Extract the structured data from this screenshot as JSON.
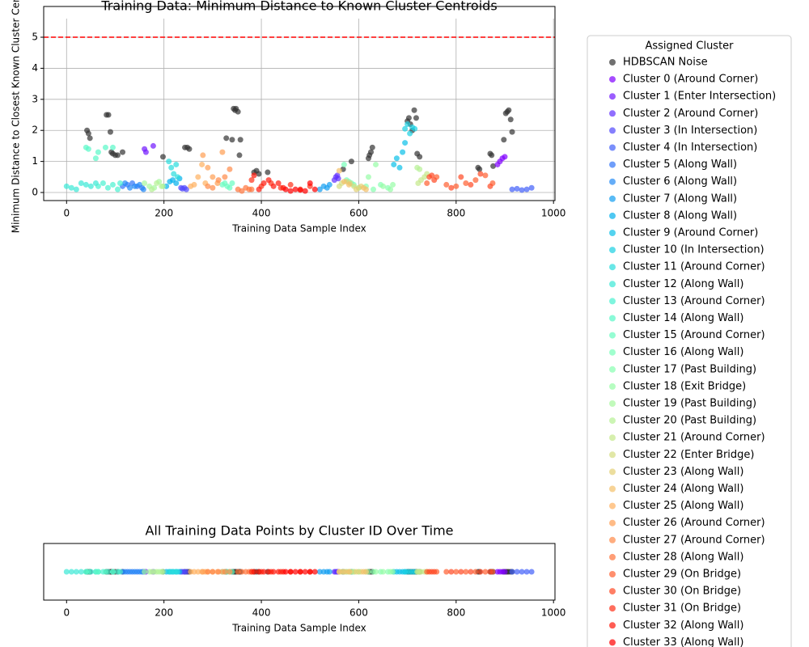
{
  "chart_data": [
    {
      "type": "scatter",
      "title": "Training Data: Minimum Distance to Known Cluster Centroids",
      "xlabel": "Training Data Sample Index",
      "ylabel": "Minimum Distance to Closest Known Cluster Centroid",
      "xlim": [
        -47,
        1003
      ],
      "ylim": [
        -0.26,
        5.99
      ],
      "xticks": [
        0,
        200,
        400,
        600,
        800,
        1000
      ],
      "yticks": [
        0,
        1,
        2,
        3,
        4,
        5
      ],
      "grid": true,
      "threshold": 5,
      "threshold_color": "#ff0000",
      "legend_title": "Assigned Cluster",
      "legend_position": "outside-right",
      "series": [
        {
          "name": "HDBSCAN Noise",
          "color": "#333333",
          "x": [
            42,
            45,
            48,
            82,
            86,
            90,
            92,
            95,
            100,
            105,
            115,
            198,
            243,
            248,
            252,
            328,
            340,
            343,
            346,
            348,
            352,
            355,
            357,
            385,
            390,
            395,
            413,
            568,
            585,
            620,
            622,
            625,
            628,
            700,
            703,
            706,
            710,
            714,
            718,
            720,
            725,
            845,
            848,
            870,
            873,
            876,
            898,
            902,
            905,
            908,
            912,
            915
          ],
          "values": [
            2.0,
            1.9,
            1.75,
            2.5,
            2.5,
            1.95,
            1.3,
            1.25,
            1.2,
            1.2,
            1.3,
            1.15,
            1.45,
            1.45,
            1.4,
            1.75,
            1.7,
            2.7,
            2.65,
            2.7,
            2.6,
            1.2,
            1.7,
            0.65,
            0.7,
            0.6,
            0.65,
            0.75,
            1.0,
            1.1,
            1.2,
            1.3,
            1.45,
            2.3,
            2.4,
            2.2,
            2.0,
            2.65,
            2.4,
            1.25,
            1.15,
            0.8,
            0.75,
            1.25,
            1.2,
            0.85,
            1.7,
            2.55,
            2.6,
            2.65,
            2.35,
            1.95
          ]
        },
        {
          "name": "Cluster 0 (Around Corner)",
          "color": "#8000ff",
          "x": [
            885,
            890,
            895,
            900
          ],
          "values": [
            0.9,
            1.0,
            1.1,
            1.15
          ]
        },
        {
          "name": "Cluster 1 (Enter Intersection)",
          "color": "#7018fe",
          "x": [
            160,
            163,
            178
          ],
          "values": [
            1.4,
            1.3,
            1.5
          ]
        },
        {
          "name": "Cluster 2 (Around Corner)",
          "color": "#6130fe",
          "x": [
            550,
            553,
            556,
            558
          ],
          "values": [
            0.4,
            0.5,
            0.55,
            0.45
          ]
        },
        {
          "name": "Cluster 3 (In Intersection)",
          "color": "#5148fc",
          "x": [
            235,
            238,
            242,
            246
          ],
          "values": [
            0.15,
            0.12,
            0.15,
            0.1
          ]
        },
        {
          "name": "Cluster 4 (In Intersection)",
          "color": "#425ffa",
          "x": [
            915,
            925,
            935,
            945,
            955
          ],
          "values": [
            0.1,
            0.12,
            0.08,
            0.1,
            0.15
          ]
        },
        {
          "name": "Cluster 5 (Along Wall)",
          "color": "#3275f8",
          "x": [
            115,
            125,
            135,
            145,
            155
          ],
          "values": [
            0.2,
            0.25,
            0.3,
            0.2,
            0.15
          ]
        },
        {
          "name": "Cluster 6 (Along Wall)",
          "color": "#238af5",
          "x": [
            120,
            130,
            140,
            150,
            158
          ],
          "values": [
            0.3,
            0.15,
            0.2,
            0.25,
            0.1
          ]
        },
        {
          "name": "Cluster 7 (Along Wall)",
          "color": "#139ef1",
          "x": [
            520,
            528,
            535,
            540
          ],
          "values": [
            0.1,
            0.2,
            0.15,
            0.25
          ]
        },
        {
          "name": "Cluster 8 (Along Wall)",
          "color": "#04b0ed",
          "x": [
            205,
            212,
            218,
            225,
            232
          ],
          "values": [
            0.2,
            0.35,
            0.4,
            0.3,
            0.45
          ]
        },
        {
          "name": "Cluster 9 (Around Corner)",
          "color": "#0cc1e8",
          "x": [
            672,
            678,
            684,
            690,
            695
          ],
          "values": [
            0.9,
            1.1,
            0.8,
            1.3,
            1.6
          ]
        },
        {
          "name": "Cluster 10 (In Intersection)",
          "color": "#1bd0e3",
          "x": [
            695,
            700,
            705,
            710,
            715
          ],
          "values": [
            2.05,
            2.2,
            1.9,
            2.1,
            2.05
          ]
        },
        {
          "name": "Cluster 11 (Around Corner)",
          "color": "#2adddd",
          "x": [
            210,
            215,
            220,
            225,
            228
          ],
          "values": [
            1.0,
            0.8,
            0.6,
            0.9,
            0.5
          ]
        },
        {
          "name": "Cluster 12 (Along Wall)",
          "color": "#3ae8d6",
          "x": [
            0,
            10,
            20,
            30,
            40,
            50,
            60
          ],
          "values": [
            0.2,
            0.15,
            0.1,
            0.3,
            0.25,
            0.2,
            0.3
          ]
        },
        {
          "name": "Cluster 13 (Around Corner)",
          "color": "#49f1d0",
          "x": [
            65,
            75,
            85,
            95,
            105,
            110
          ],
          "values": [
            0.2,
            0.3,
            0.15,
            0.25,
            0.1,
            0.3
          ]
        },
        {
          "name": "Cluster 14 (Along Wall)",
          "color": "#59f8c8",
          "x": [
            40,
            45,
            60,
            65,
            80,
            95
          ],
          "values": [
            1.45,
            1.4,
            1.1,
            1.3,
            1.45,
            1.45
          ]
        },
        {
          "name": "Cluster 15 (Around Corner)",
          "color": "#68fcc1",
          "x": [
            320,
            325,
            330,
            335,
            340
          ],
          "values": [
            0.25,
            0.3,
            0.2,
            0.15,
            0.3
          ]
        },
        {
          "name": "Cluster 16 (Along Wall)",
          "color": "#78ffb9",
          "x": [
            570,
            575,
            580,
            585,
            590
          ],
          "values": [
            0.9,
            0.4,
            0.35,
            0.3,
            0.25
          ]
        },
        {
          "name": "Cluster 17 (Past Building)",
          "color": "#87ffb0",
          "x": [
            600,
            615,
            630,
            645,
            660
          ],
          "values": [
            0.15,
            0.2,
            0.1,
            0.25,
            0.15
          ]
        },
        {
          "name": "Cluster 18 (Exit Bridge)",
          "color": "#97fca7",
          "x": [
            620,
            635,
            650,
            665,
            670
          ],
          "values": [
            0.5,
            0.9,
            0.2,
            0.1,
            0.25
          ]
        },
        {
          "name": "Cluster 19 (Past Building)",
          "color": "#a6f89e",
          "x": [
            160,
            170,
            180,
            190,
            198
          ],
          "values": [
            0.3,
            0.2,
            0.15,
            0.35,
            0.2
          ]
        },
        {
          "name": "Cluster 20 (Past Building)",
          "color": "#b6f194",
          "x": [
            175,
            185,
            195,
            720,
            725
          ],
          "values": [
            0.1,
            0.3,
            0.2,
            0.8,
            0.75
          ]
        },
        {
          "name": "Cluster 21 (Around Corner)",
          "color": "#c5e88a",
          "x": [
            722,
            728,
            735,
            740
          ],
          "values": [
            0.3,
            0.4,
            0.5,
            0.6
          ]
        },
        {
          "name": "Cluster 22 (Enter Bridge)",
          "color": "#d4dd80",
          "x": [
            560,
            565,
            590,
            600
          ],
          "values": [
            0.2,
            0.3,
            0.2,
            0.15
          ]
        },
        {
          "name": "Cluster 23 (Along Wall)",
          "color": "#e4d075",
          "x": [
            575,
            582,
            595,
            605
          ],
          "values": [
            0.35,
            0.3,
            0.1,
            0.2
          ]
        },
        {
          "name": "Cluster 24 (Along Wall)",
          "color": "#f3c16a",
          "x": [
            560,
            570,
            580,
            610,
            615
          ],
          "values": [
            0.7,
            0.35,
            0.25,
            0.15,
            0.1
          ]
        },
        {
          "name": "Cluster 25 (Along Wall)",
          "color": "#ffb05f",
          "x": [
            255,
            262,
            270,
            278,
            285
          ],
          "values": [
            0.2,
            0.25,
            0.5,
            0.9,
            0.3
          ]
        },
        {
          "name": "Cluster 26 (Around Corner)",
          "color": "#ff9e53",
          "x": [
            280,
            290,
            300,
            310,
            320
          ],
          "values": [
            1.2,
            0.8,
            0.5,
            0.3,
            1.3
          ]
        },
        {
          "name": "Cluster 27 (Around Corner)",
          "color": "#ff8a48",
          "x": [
            290,
            300,
            312,
            325,
            335
          ],
          "values": [
            0.2,
            0.15,
            0.4,
            0.5,
            0.75
          ]
        },
        {
          "name": "Cluster 28 (Along Wall)",
          "color": "#ff753c",
          "x": [
            352,
            360,
            368,
            375,
            380
          ],
          "values": [
            0.1,
            0.05,
            0.15,
            0.1,
            0.1
          ]
        },
        {
          "name": "Cluster 29 (On Bridge)",
          "color": "#ff5f30",
          "x": [
            740,
            760,
            780,
            800,
            820,
            840,
            860,
            875
          ],
          "values": [
            0.3,
            0.5,
            0.25,
            0.2,
            0.3,
            0.4,
            0.55,
            0.3
          ]
        },
        {
          "name": "Cluster 30 (On Bridge)",
          "color": "#ff4824",
          "x": [
            745,
            750,
            755,
            790,
            810,
            830,
            850,
            870
          ],
          "values": [
            0.5,
            0.55,
            0.4,
            0.15,
            0.5,
            0.25,
            0.6,
            0.2
          ]
        },
        {
          "name": "Cluster 31 (On Bridge)",
          "color": "#ff3018",
          "x": [
            380,
            400,
            420,
            440,
            460,
            480,
            500
          ],
          "values": [
            0.4,
            0.2,
            0.3,
            0.15,
            0.25,
            0.1,
            0.2
          ]
        },
        {
          "name": "Cluster 32 (Along Wall)",
          "color": "#ff180c",
          "x": [
            385,
            395,
            405,
            415,
            425,
            435,
            445
          ],
          "values": [
            0.55,
            0.1,
            0.3,
            0.4,
            0.2,
            0.3,
            0.15
          ]
        },
        {
          "name": "Cluster 33 (Along Wall)",
          "color": "#ff0000",
          "x": [
            450,
            460,
            470,
            480,
            490,
            500,
            510
          ],
          "values": [
            0.1,
            0.05,
            0.1,
            0.08,
            0.05,
            0.3,
            0.1
          ]
        }
      ]
    },
    {
      "type": "strip",
      "title": "All Training Data Points by Cluster ID Over Time",
      "xlabel": "Training Data Sample Index",
      "xlim": [
        -47,
        1003
      ],
      "xticks": [
        0,
        200,
        400,
        600,
        800,
        1000
      ]
    }
  ]
}
